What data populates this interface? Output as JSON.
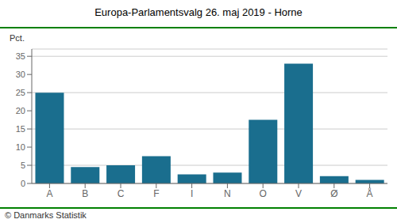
{
  "chart_data": {
    "type": "bar",
    "title": "Europa-Parlamentsvalg 26. maj 2019 - Horne",
    "ylabel": "Pct.",
    "footnote": "© Danmarks Statistik",
    "categories": [
      "A",
      "B",
      "C",
      "F",
      "I",
      "N",
      "O",
      "V",
      "Ø",
      "Å"
    ],
    "values": [
      25.0,
      4.5,
      5.0,
      7.5,
      2.5,
      3.0,
      17.5,
      33.0,
      2.0,
      1.0
    ],
    "color": "#1a6e8e",
    "ylim": [
      0,
      37
    ],
    "yticks": [
      0,
      5,
      10,
      15,
      20,
      25,
      30,
      35
    ],
    "grid": true
  }
}
